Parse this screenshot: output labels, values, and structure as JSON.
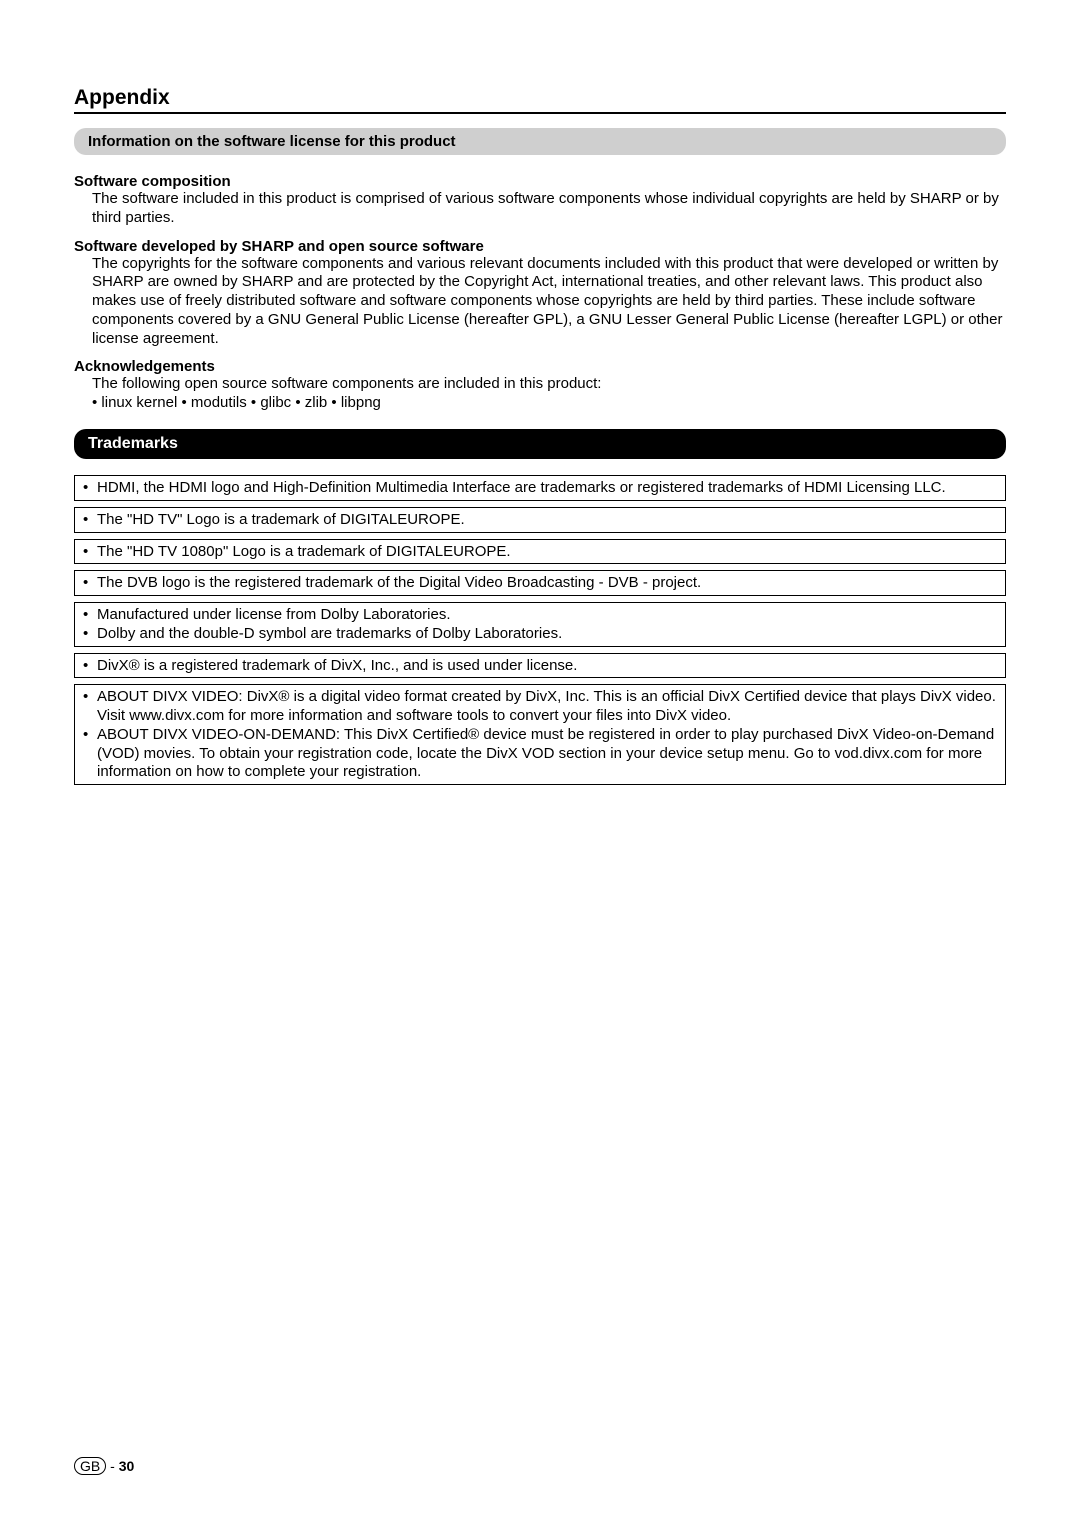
{
  "title": "Appendix",
  "info_bar": "Information on the software license for this product",
  "sections": [
    {
      "heading": "Software composition",
      "body": "The software included in this product is comprised of various software components whose individual copyrights are held by SHARP or by third parties."
    },
    {
      "heading": "Software developed by SHARP and open source software",
      "body": "The copyrights for the software components and various relevant documents included with this product that were developed or written by SHARP are owned by SHARP and are protected by the Copyright Act, international treaties, and other relevant laws. This product also makes use of freely distributed software and software components whose copyrights are held by third parties. These include software components covered by a GNU General Public License (hereafter GPL), a GNU Lesser General Public License (hereafter LGPL) or other license agreement."
    },
    {
      "heading": "Acknowledgements",
      "body": "The following open source software components are included in this product:"
    }
  ],
  "ack_bullets": "• linux kernel • modutils • glibc • zlib • libpng",
  "trademarks_title": "Trademarks",
  "tm_boxes": [
    [
      "HDMI, the HDMI logo and High-Definition Multimedia Interface are trademarks or registered trademarks of HDMI Licensing LLC."
    ],
    [
      "The \"HD TV\" Logo is a trademark of DIGITALEUROPE."
    ],
    [
      "The \"HD TV 1080p\" Logo is a trademark of DIGITALEUROPE."
    ],
    [
      "The DVB logo is the registered trademark of the Digital Video Broadcasting - DVB - project."
    ],
    [
      "Manufactured under license from Dolby Laboratories.",
      "Dolby and the double-D symbol are trademarks of Dolby Laboratories."
    ],
    [
      "DivX® is a registered trademark of DivX, Inc., and is used under license."
    ],
    [
      "ABOUT DIVX VIDEO: DivX® is a digital video format created by DivX, Inc. This is an official DivX Certified device that plays DivX video. Visit www.divx.com for more information and software tools to convert your files into DivX video.",
      "ABOUT DIVX VIDEO-ON-DEMAND: This DivX Certified® device must be registered in order to play purchased DivX Video-on-Demand (VOD) movies. To obtain your registration code, locate the DivX VOD section in your device setup menu. Go to vod.divx.com for more information on how to complete your registration."
    ]
  ],
  "footer": {
    "region": "GB",
    "sep": " - ",
    "page": "30"
  }
}
